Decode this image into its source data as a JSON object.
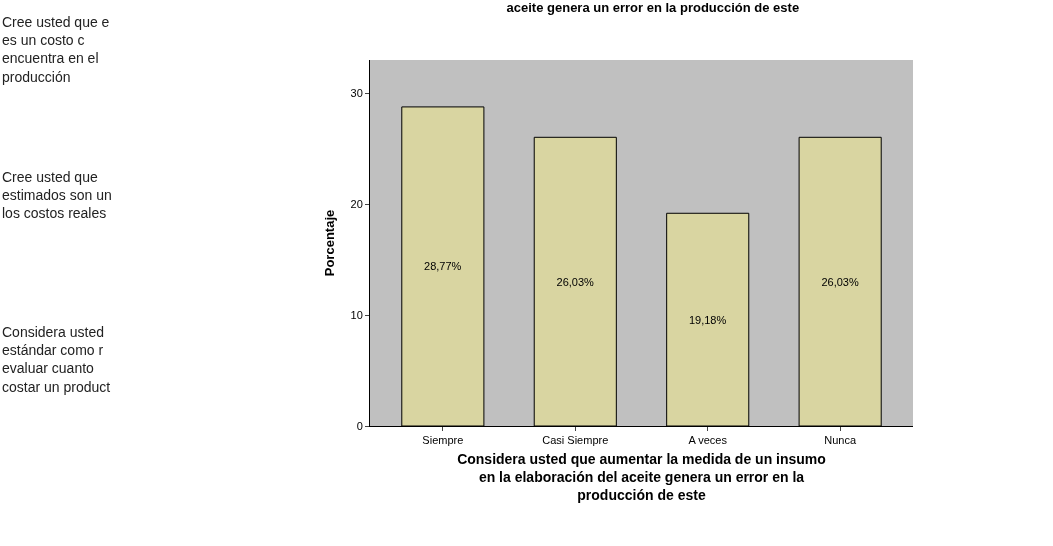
{
  "chart_data": {
    "type": "bar",
    "title": "aceite genera un error en la producción de este",
    "xlabel": "Considera usted que aumentar la medida de un insumo\nen la elaboración del aceite genera un error en la\nproducción de este",
    "ylabel": "Porcentaje",
    "categories": [
      "Siempre",
      "Casi Siempre",
      "A veces",
      "Nunca"
    ],
    "values": [
      28.77,
      26.03,
      19.18,
      26.03
    ],
    "value_labels": [
      "28,77%",
      "26,03%",
      "19,18%",
      "26,03%"
    ],
    "color": "#d9d5a1",
    "ylim": [
      0,
      33
    ],
    "yticks": [
      0,
      10,
      20,
      30
    ],
    "grid": false,
    "annotations": [
      "Cree usted que e\nes un costo c\nencuentra en el\nproducción",
      "Cree usted que\nestimados son un\nlos costos reales",
      "Considera usted\nestándar como r\nevaluar cuanto\ncostar un product"
    ]
  }
}
